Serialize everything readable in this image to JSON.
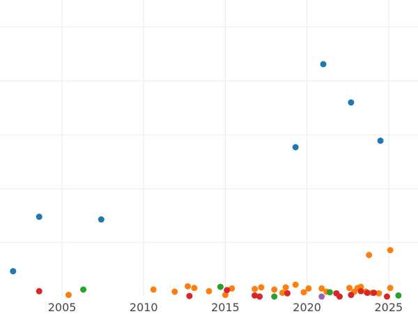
{
  "chart_data": {
    "type": "scatter",
    "xlim": [
      2001.2,
      2026.8
    ],
    "ylim": [
      0,
      5.5
    ],
    "x_ticks": [
      2005,
      2010,
      2015,
      2020,
      2025
    ],
    "x_tick_labels": [
      "2005",
      "2010",
      "2015",
      "2020",
      "2025"
    ],
    "y_gridlines": [
      1,
      2,
      3,
      4,
      5
    ],
    "grid": true,
    "legend": "none",
    "series": [
      {
        "color": "#1f77b4",
        "points": [
          {
            "x": 2002.0,
            "y": 0.47
          },
          {
            "x": 2003.6,
            "y": 1.48
          },
          {
            "x": 2007.4,
            "y": 1.43
          },
          {
            "x": 2019.3,
            "y": 2.77
          },
          {
            "x": 2021.0,
            "y": 4.31
          },
          {
            "x": 2022.7,
            "y": 3.6
          },
          {
            "x": 2024.5,
            "y": 2.89
          }
        ]
      },
      {
        "color": "#ff7f0e",
        "points": [
          {
            "x": 2005.4,
            "y": 0.03
          },
          {
            "x": 2010.6,
            "y": 0.13
          },
          {
            "x": 2011.9,
            "y": 0.09
          },
          {
            "x": 2012.7,
            "y": 0.19
          },
          {
            "x": 2013.1,
            "y": 0.16
          },
          {
            "x": 2014.0,
            "y": 0.1
          },
          {
            "x": 2015.0,
            "y": 0.03
          },
          {
            "x": 2015.4,
            "y": 0.15
          },
          {
            "x": 2016.8,
            "y": 0.14
          },
          {
            "x": 2017.2,
            "y": 0.17
          },
          {
            "x": 2018.0,
            "y": 0.13
          },
          {
            "x": 2018.5,
            "y": 0.07
          },
          {
            "x": 2018.7,
            "y": 0.17
          },
          {
            "x": 2019.3,
            "y": 0.22
          },
          {
            "x": 2019.8,
            "y": 0.08
          },
          {
            "x": 2020.1,
            "y": 0.15
          },
          {
            "x": 2020.9,
            "y": 0.15
          },
          {
            "x": 2021.2,
            "y": 0.09
          },
          {
            "x": 2022.6,
            "y": 0.16
          },
          {
            "x": 2022.9,
            "y": 0.09
          },
          {
            "x": 2023.1,
            "y": 0.16
          },
          {
            "x": 2023.3,
            "y": 0.18
          },
          {
            "x": 2023.6,
            "y": 0.09
          },
          {
            "x": 2023.8,
            "y": 0.77
          },
          {
            "x": 2024.0,
            "y": 0.07
          },
          {
            "x": 2024.4,
            "y": 0.06
          },
          {
            "x": 2025.1,
            "y": 0.86
          },
          {
            "x": 2025.1,
            "y": 0.16
          }
        ]
      },
      {
        "color": "#2ca02c",
        "points": [
          {
            "x": 2006.3,
            "y": 0.13
          },
          {
            "x": 2014.7,
            "y": 0.18
          },
          {
            "x": 2018.0,
            "y": 0.0
          },
          {
            "x": 2021.4,
            "y": 0.08
          },
          {
            "x": 2025.6,
            "y": 0.02
          }
        ]
      },
      {
        "color": "#d62728",
        "points": [
          {
            "x": 2003.6,
            "y": 0.1
          },
          {
            "x": 2012.8,
            "y": 0.01
          },
          {
            "x": 2015.1,
            "y": 0.12
          },
          {
            "x": 2016.8,
            "y": 0.02
          },
          {
            "x": 2017.1,
            "y": 0.0
          },
          {
            "x": 2018.8,
            "y": 0.06
          },
          {
            "x": 2021.8,
            "y": 0.06
          },
          {
            "x": 2022.0,
            "y": 0.0
          },
          {
            "x": 2022.7,
            "y": 0.03
          },
          {
            "x": 2023.3,
            "y": 0.1
          },
          {
            "x": 2023.7,
            "y": 0.07
          },
          {
            "x": 2024.1,
            "y": 0.07
          },
          {
            "x": 2024.9,
            "y": 0.0
          }
        ]
      },
      {
        "color": "#9467bd",
        "points": [
          {
            "x": 2020.9,
            "y": 0.0
          }
        ]
      }
    ]
  }
}
